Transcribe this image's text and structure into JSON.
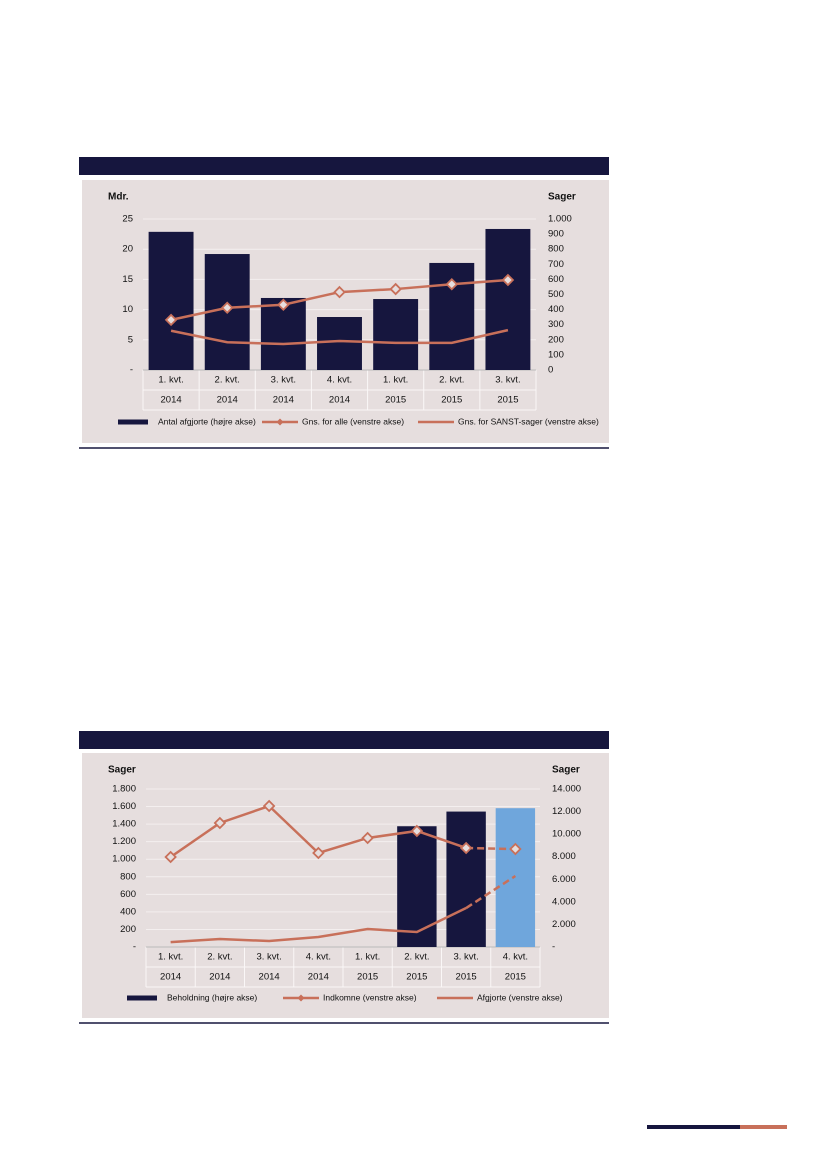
{
  "chart_data": [
    {
      "type": "bar",
      "ylabel": "Mdr.",
      "y2label": "Sager",
      "categories": [
        [
          "1. kvt.",
          "2014"
        ],
        [
          "2. kvt.",
          "2014"
        ],
        [
          "3. kvt.",
          "2014"
        ],
        [
          "4. kvt.",
          "2014"
        ],
        [
          "1. kvt.",
          "2015"
        ],
        [
          "2. kvt.",
          "2015"
        ],
        [
          "3. kvt.",
          "2015"
        ]
      ],
      "ylim": [
        0,
        25
      ],
      "yticks": [
        {
          "value": 0,
          "label": "-"
        },
        5,
        10,
        15,
        20,
        25
      ],
      "y2lim": [
        0,
        1000
      ],
      "y2ticks": [
        0,
        100,
        200,
        300,
        400,
        500,
        600,
        700,
        800,
        900,
        {
          "value": 1000,
          "label": "1.000"
        }
      ],
      "grid": true,
      "series": [
        {
          "name": "Antal afgjorte (højre akse)",
          "type": "bar",
          "axis": "y2",
          "color": "#16163e",
          "colors": [
            "#16163e",
            "#16163e",
            "#16163e",
            "#16163e",
            "#16163e",
            "#16163e",
            "#16163e"
          ],
          "values": [
            915,
            768,
            477,
            351,
            470,
            709,
            934
          ]
        },
        {
          "name": "Gns. for alle (venstre akse)",
          "type": "line",
          "marker": "diamond",
          "color": "#c8705a",
          "values": [
            8.3,
            10.3,
            10.8,
            12.9,
            13.4,
            14.2,
            14.9
          ]
        },
        {
          "name": "Gns. for SANST-sager (venstre akse)",
          "type": "line",
          "color": "#c8705a",
          "values": [
            6.5,
            4.6,
            4.3,
            4.8,
            4.5,
            4.5,
            6.6
          ]
        }
      ]
    },
    {
      "type": "bar",
      "ylabel": "Sager",
      "y2label": "Sager",
      "categories": [
        [
          "1. kvt.",
          "2014"
        ],
        [
          "2. kvt.",
          "2014"
        ],
        [
          "3. kvt.",
          "2014"
        ],
        [
          "4. kvt.",
          "2014"
        ],
        [
          "1. kvt.",
          "2015"
        ],
        [
          "2. kvt.",
          "2015"
        ],
        [
          "3. kvt.",
          "2015"
        ],
        [
          "4. kvt.",
          "2015"
        ]
      ],
      "ylim": [
        0,
        1800
      ],
      "yticks": [
        {
          "value": 0,
          "label": "-"
        },
        200,
        400,
        600,
        800,
        {
          "value": 1000,
          "label": "1.000"
        },
        {
          "value": 1200,
          "label": "1.200"
        },
        {
          "value": 1400,
          "label": "1.400"
        },
        {
          "value": 1600,
          "label": "1.600"
        },
        {
          "value": 1800,
          "label": "1.800"
        }
      ],
      "y2lim": [
        0,
        14000
      ],
      "y2ticks": [
        {
          "value": 0,
          "label": "-"
        },
        {
          "value": 2000,
          "label": "2.000"
        },
        {
          "value": 4000,
          "label": "4.000"
        },
        {
          "value": 6000,
          "label": "6.000"
        },
        {
          "value": 8000,
          "label": "8.000"
        },
        {
          "value": 10000,
          "label": "10.000"
        },
        {
          "value": 12000,
          "label": "12.000"
        },
        {
          "value": 14000,
          "label": "14.000"
        }
      ],
      "grid": true,
      "series": [
        {
          "name": "Beholdning (højre akse)",
          "type": "bar",
          "axis": "y2",
          "color": "#16163e",
          "colors": [
            "#16163e",
            "#16163e",
            "#16163e",
            "#16163e",
            "#16163e",
            "#16163e",
            "#16163e",
            "#6fa6dc"
          ],
          "values": [
            null,
            null,
            null,
            null,
            null,
            10700,
            12000,
            12300
          ]
        },
        {
          "name": "Indkomne (venstre akse)",
          "type": "line",
          "marker": "diamond",
          "color": "#c8705a",
          "dash_from": 6,
          "values": [
            1025,
            1413,
            1606,
            1071,
            1242,
            1322,
            1128,
            1116
          ]
        },
        {
          "name": "Afgjorte (venstre akse)",
          "type": "line",
          "color": "#c8705a",
          "dash_from": 6,
          "values": [
            55,
            91,
            68,
            114,
            205,
            171,
            444,
            809
          ]
        }
      ]
    }
  ]
}
